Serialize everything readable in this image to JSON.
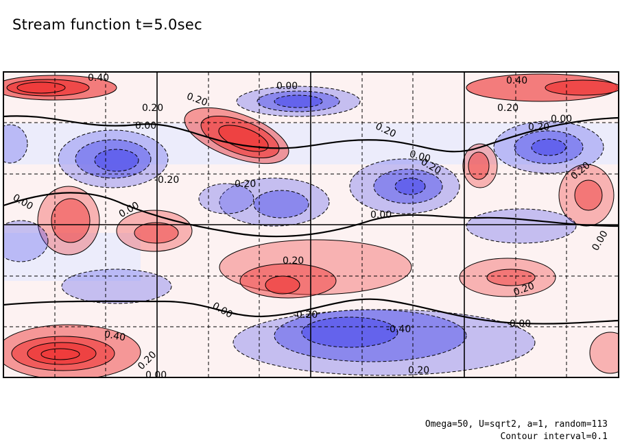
{
  "title": "Stream function t=5.0sec",
  "footer": {
    "line1": "Omega=50, U=sqrt2, a=1, random=113",
    "line2": "Contour interval=0.1"
  },
  "colors": {
    "positive": "#ee4444",
    "negative": "#5555ee",
    "contour_line": "#000000",
    "grid": "#000000"
  },
  "chart_data": {
    "type": "heatmap",
    "title": "Stream function t=5.0sec",
    "contour_interval": 0.1,
    "grid": "dashed minor, solid major",
    "contour_labels": [
      "0.40",
      "0.00",
      "0.40",
      "0.20",
      "0.20",
      "0.00",
      "0.20",
      "0.00",
      "0.20",
      "0.20",
      "0.00",
      "0.20",
      "0.20",
      "-0.20",
      "-0.20",
      "0.00",
      "0.00",
      "0.00",
      "0.00",
      "0.20",
      "0.20",
      "0.00",
      "-0.20",
      "0.00",
      "0.40",
      "-0.40",
      "0.20",
      "0.20",
      "0.00"
    ],
    "extrema": [
      {
        "region": "top-left band",
        "value": 0.5
      },
      {
        "region": "top-right band",
        "value": 0.5
      },
      {
        "region": "top-center trough",
        "value": -0.4
      },
      {
        "region": "upper-middle ridge",
        "value": 0.4
      },
      {
        "region": "left-upper trough",
        "value": -0.4
      },
      {
        "region": "center-right trough",
        "value": -0.4
      },
      {
        "region": "bottom-left ridge",
        "value": 0.7
      },
      {
        "region": "bottom-center trough",
        "value": -0.5
      }
    ]
  }
}
